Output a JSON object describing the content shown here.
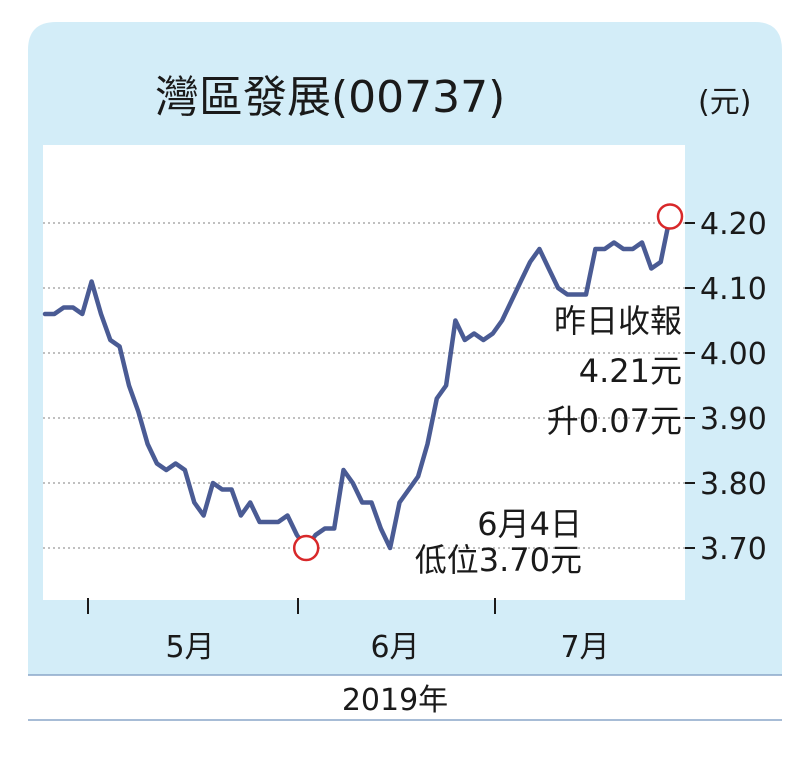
{
  "chart_data": {
    "type": "line",
    "title": "灣區發展(00737)",
    "unit_label": "(元)",
    "year_label": "2019年",
    "ylim": [
      3.62,
      4.32
    ],
    "grid": true,
    "y_ticks": [
      {
        "value": 3.7,
        "label": "3.70"
      },
      {
        "value": 3.8,
        "label": "3.80"
      },
      {
        "value": 3.9,
        "label": "3.90"
      },
      {
        "value": 4.0,
        "label": "4.00"
      },
      {
        "value": 4.1,
        "label": "4.10"
      },
      {
        "value": 4.2,
        "label": "4.20"
      }
    ],
    "month_labels": [
      "5月",
      "6月",
      "7月"
    ],
    "series": [
      {
        "color": "#4a5b94",
        "values": [
          4.06,
          4.06,
          4.07,
          4.07,
          4.06,
          4.11,
          4.06,
          4.02,
          4.01,
          3.95,
          3.91,
          3.86,
          3.83,
          3.82,
          3.83,
          3.82,
          3.77,
          3.75,
          3.8,
          3.79,
          3.79,
          3.75,
          3.77,
          3.74,
          3.74,
          3.74,
          3.75,
          3.72,
          3.7,
          3.72,
          3.73,
          3.73,
          3.82,
          3.8,
          3.77,
          3.77,
          3.73,
          3.7,
          3.77,
          3.79,
          3.81,
          3.86,
          3.93,
          3.95,
          4.05,
          4.02,
          4.03,
          4.02,
          4.03,
          4.05,
          4.08,
          4.11,
          4.14,
          4.16,
          4.13,
          4.1,
          4.09,
          4.09,
          4.09,
          4.16,
          4.16,
          4.17,
          4.16,
          4.16,
          4.17,
          4.13,
          4.14,
          4.21
        ]
      }
    ],
    "annotations": [
      {
        "lines": [
          "6月4日",
          "低位3.70元"
        ],
        "marker_index": 28
      },
      {
        "lines": [
          "昨日收報",
          "4.21元",
          "升0.07元"
        ],
        "marker_index": 67
      }
    ],
    "colors": {
      "panel_bg": "#d3edf8",
      "plot_bg": "#ffffff",
      "line": "#4a5b94",
      "marker": "#d8282a",
      "grid": "#9a9a9a",
      "text": "#1a1a1a"
    }
  }
}
